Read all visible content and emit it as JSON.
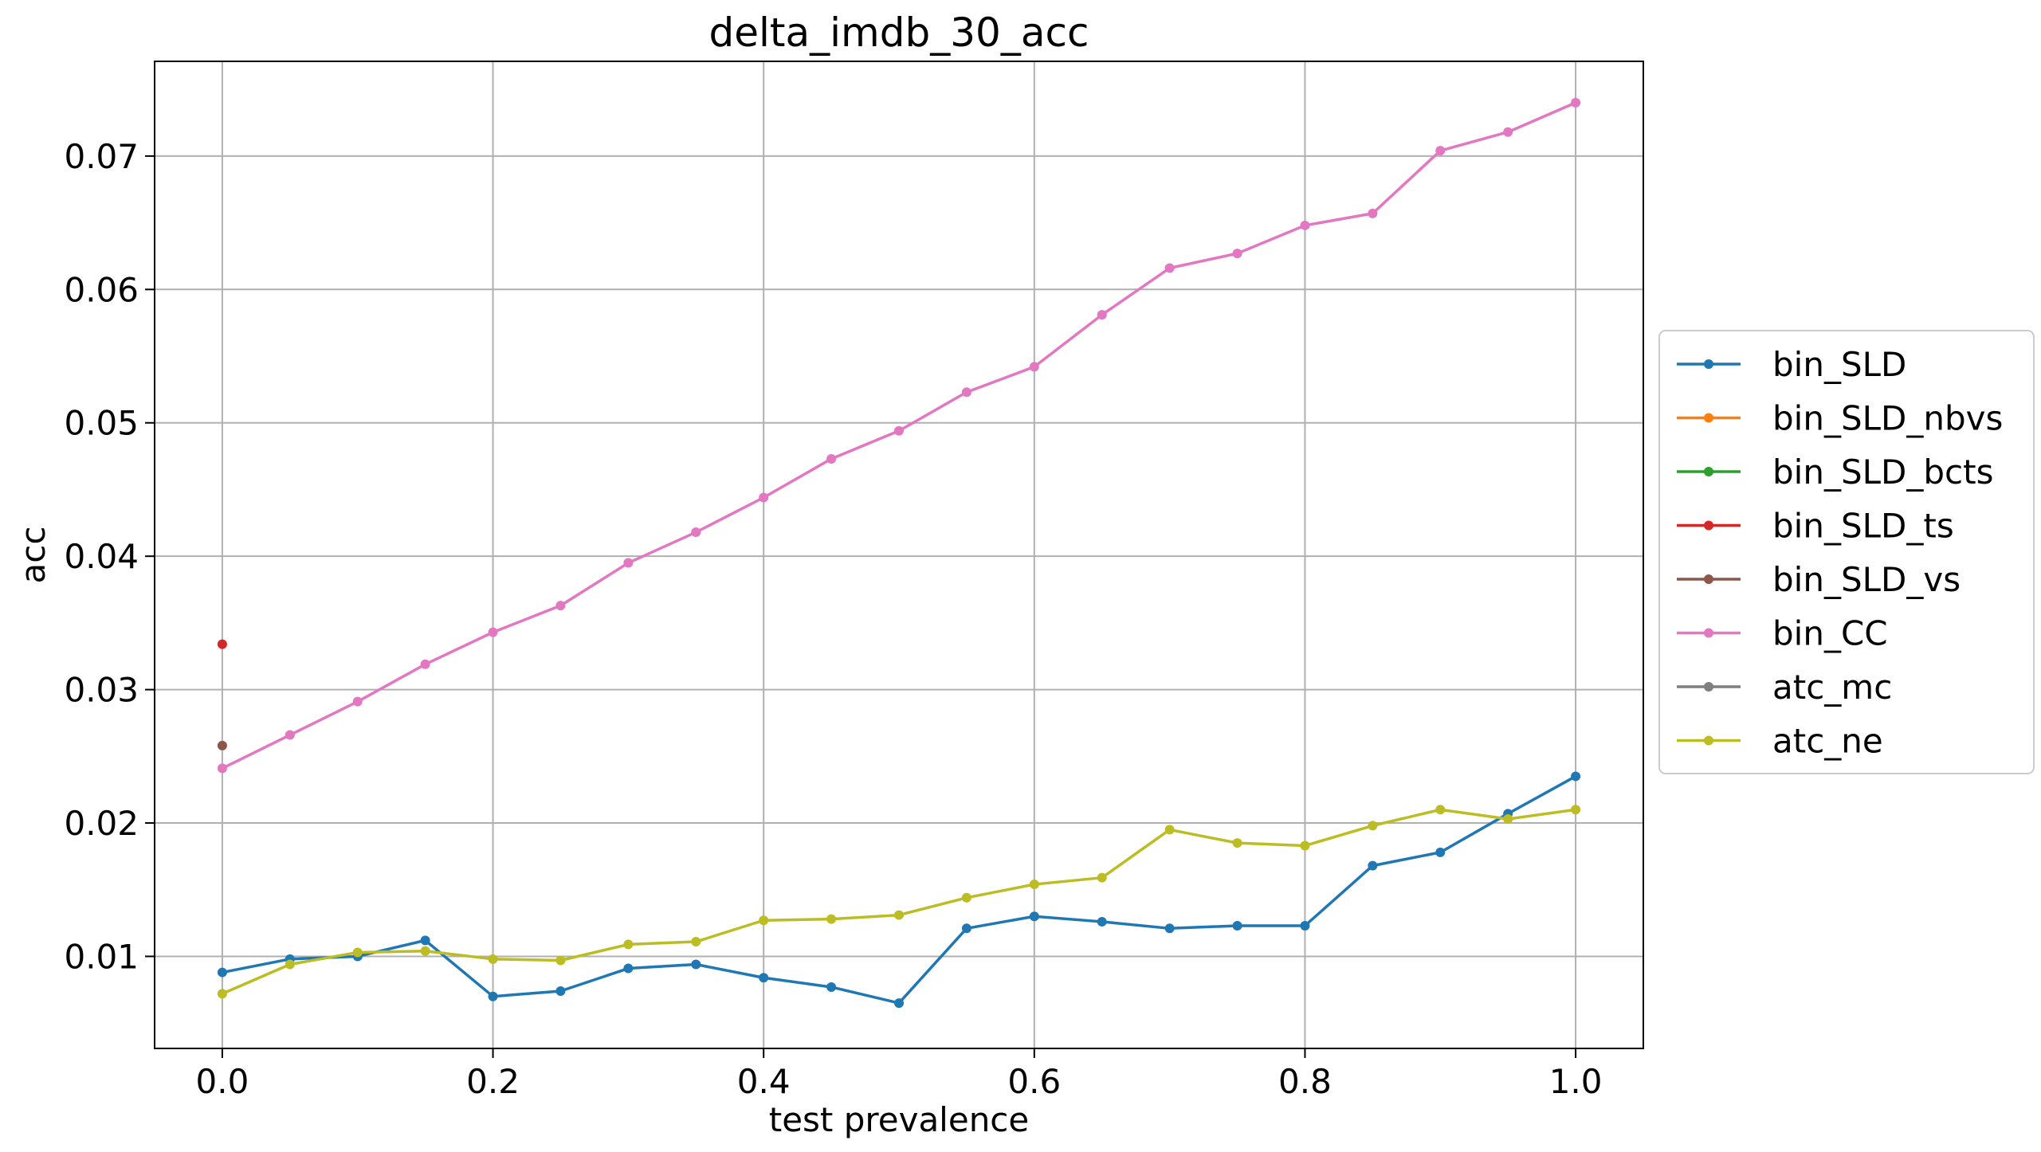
{
  "chart_data": {
    "type": "line",
    "title": "delta_imdb_30_acc",
    "xlabel": "test prevalence",
    "ylabel": "acc",
    "xlim": [
      -0.05,
      1.05
    ],
    "ylim": [
      0.0031,
      0.0771
    ],
    "xticks": [
      0.0,
      0.2,
      0.4,
      0.6,
      0.8,
      1.0
    ],
    "xtick_labels": [
      "0.0",
      "0.2",
      "0.4",
      "0.6",
      "0.8",
      "1.0"
    ],
    "yticks": [
      0.01,
      0.02,
      0.03,
      0.04,
      0.05,
      0.06,
      0.07
    ],
    "ytick_labels": [
      "0.01",
      "0.02",
      "0.03",
      "0.04",
      "0.05",
      "0.06",
      "0.07"
    ],
    "grid": true,
    "legend_position": "right-outside",
    "series": [
      {
        "name": "bin_SLD",
        "color": "#1f77b4",
        "x": [
          0.0,
          0.05,
          0.1,
          0.15,
          0.2,
          0.25,
          0.3,
          0.35,
          0.4,
          0.45,
          0.5,
          0.55,
          0.6,
          0.65,
          0.7,
          0.75,
          0.8,
          0.85,
          0.9,
          0.95,
          1.0
        ],
        "y": [
          0.0088,
          0.0098,
          0.01,
          0.0112,
          0.007,
          0.0074,
          0.0091,
          0.0094,
          0.0084,
          0.0077,
          0.0065,
          0.0121,
          0.013,
          0.0126,
          0.0121,
          0.0123,
          0.0123,
          0.0168,
          0.0178,
          0.0207,
          0.0235
        ]
      },
      {
        "name": "bin_SLD_nbvs",
        "color": "#ff7f0e",
        "x": [],
        "y": []
      },
      {
        "name": "bin_SLD_bcts",
        "color": "#2ca02c",
        "x": [],
        "y": []
      },
      {
        "name": "bin_SLD_ts",
        "color": "#d62728",
        "x": [
          0.0
        ],
        "y": [
          0.0334
        ]
      },
      {
        "name": "bin_SLD_vs",
        "color": "#8c564b",
        "x": [
          0.0
        ],
        "y": [
          0.0258
        ]
      },
      {
        "name": "bin_CC",
        "color": "#e377c2",
        "x": [
          0.0,
          0.05,
          0.1,
          0.15,
          0.2,
          0.25,
          0.3,
          0.35,
          0.4,
          0.45,
          0.5,
          0.55,
          0.6,
          0.65,
          0.7,
          0.75,
          0.8,
          0.85,
          0.9,
          0.95,
          1.0
        ],
        "y": [
          0.0241,
          0.0266,
          0.0291,
          0.0319,
          0.0343,
          0.0363,
          0.0395,
          0.0418,
          0.0444,
          0.0473,
          0.0494,
          0.0523,
          0.0542,
          0.0581,
          0.0616,
          0.0627,
          0.0648,
          0.0657,
          0.0704,
          0.0718,
          0.074
        ]
      },
      {
        "name": "atc_mc",
        "color": "#7f7f7f",
        "x": [],
        "y": []
      },
      {
        "name": "atc_ne",
        "color": "#bcbd22",
        "x": [
          0.0,
          0.05,
          0.1,
          0.15,
          0.2,
          0.25,
          0.3,
          0.35,
          0.4,
          0.45,
          0.5,
          0.55,
          0.6,
          0.65,
          0.7,
          0.75,
          0.8,
          0.85,
          0.9,
          0.95,
          1.0
        ],
        "y": [
          0.0072,
          0.0094,
          0.0103,
          0.0104,
          0.0098,
          0.0097,
          0.0109,
          0.0111,
          0.0127,
          0.0128,
          0.0131,
          0.0144,
          0.0154,
          0.0159,
          0.0195,
          0.0185,
          0.0183,
          0.0198,
          0.021,
          0.0203,
          0.021
        ]
      }
    ]
  }
}
